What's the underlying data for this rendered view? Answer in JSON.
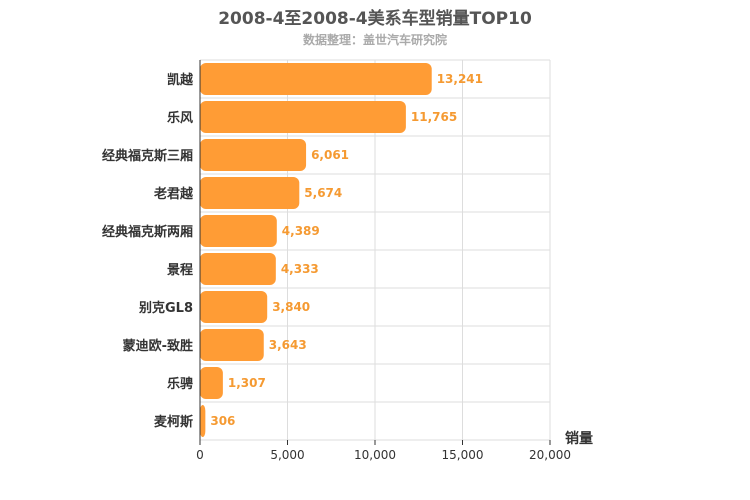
{
  "chart_data": {
    "type": "bar",
    "orientation": "horizontal",
    "title": "2008-4至2008-4美系车型销量TOP10",
    "subtitle": "数据整理：盖世汽车研究院",
    "categories": [
      "凯越",
      "乐风",
      "经典福克斯三厢",
      "老君越",
      "经典福克斯两厢",
      "景程",
      "别克GL8",
      "蒙迪欧-致胜",
      "乐骋",
      "麦柯斯"
    ],
    "values": [
      13241,
      11765,
      6061,
      5674,
      4389,
      4333,
      3840,
      3643,
      1307,
      306
    ],
    "value_labels": [
      "13,241",
      "11,765",
      "6,061",
      "5,674",
      "4,389",
      "4,333",
      "3,840",
      "3,643",
      "1,307",
      "306"
    ],
    "xlabel": "销量",
    "xlim": [
      0,
      20000
    ],
    "x_ticks": [
      "0",
      "5,000",
      "10,000",
      "15,000",
      "20,000"
    ],
    "grid": true,
    "bar_color": "#ff9c35"
  }
}
